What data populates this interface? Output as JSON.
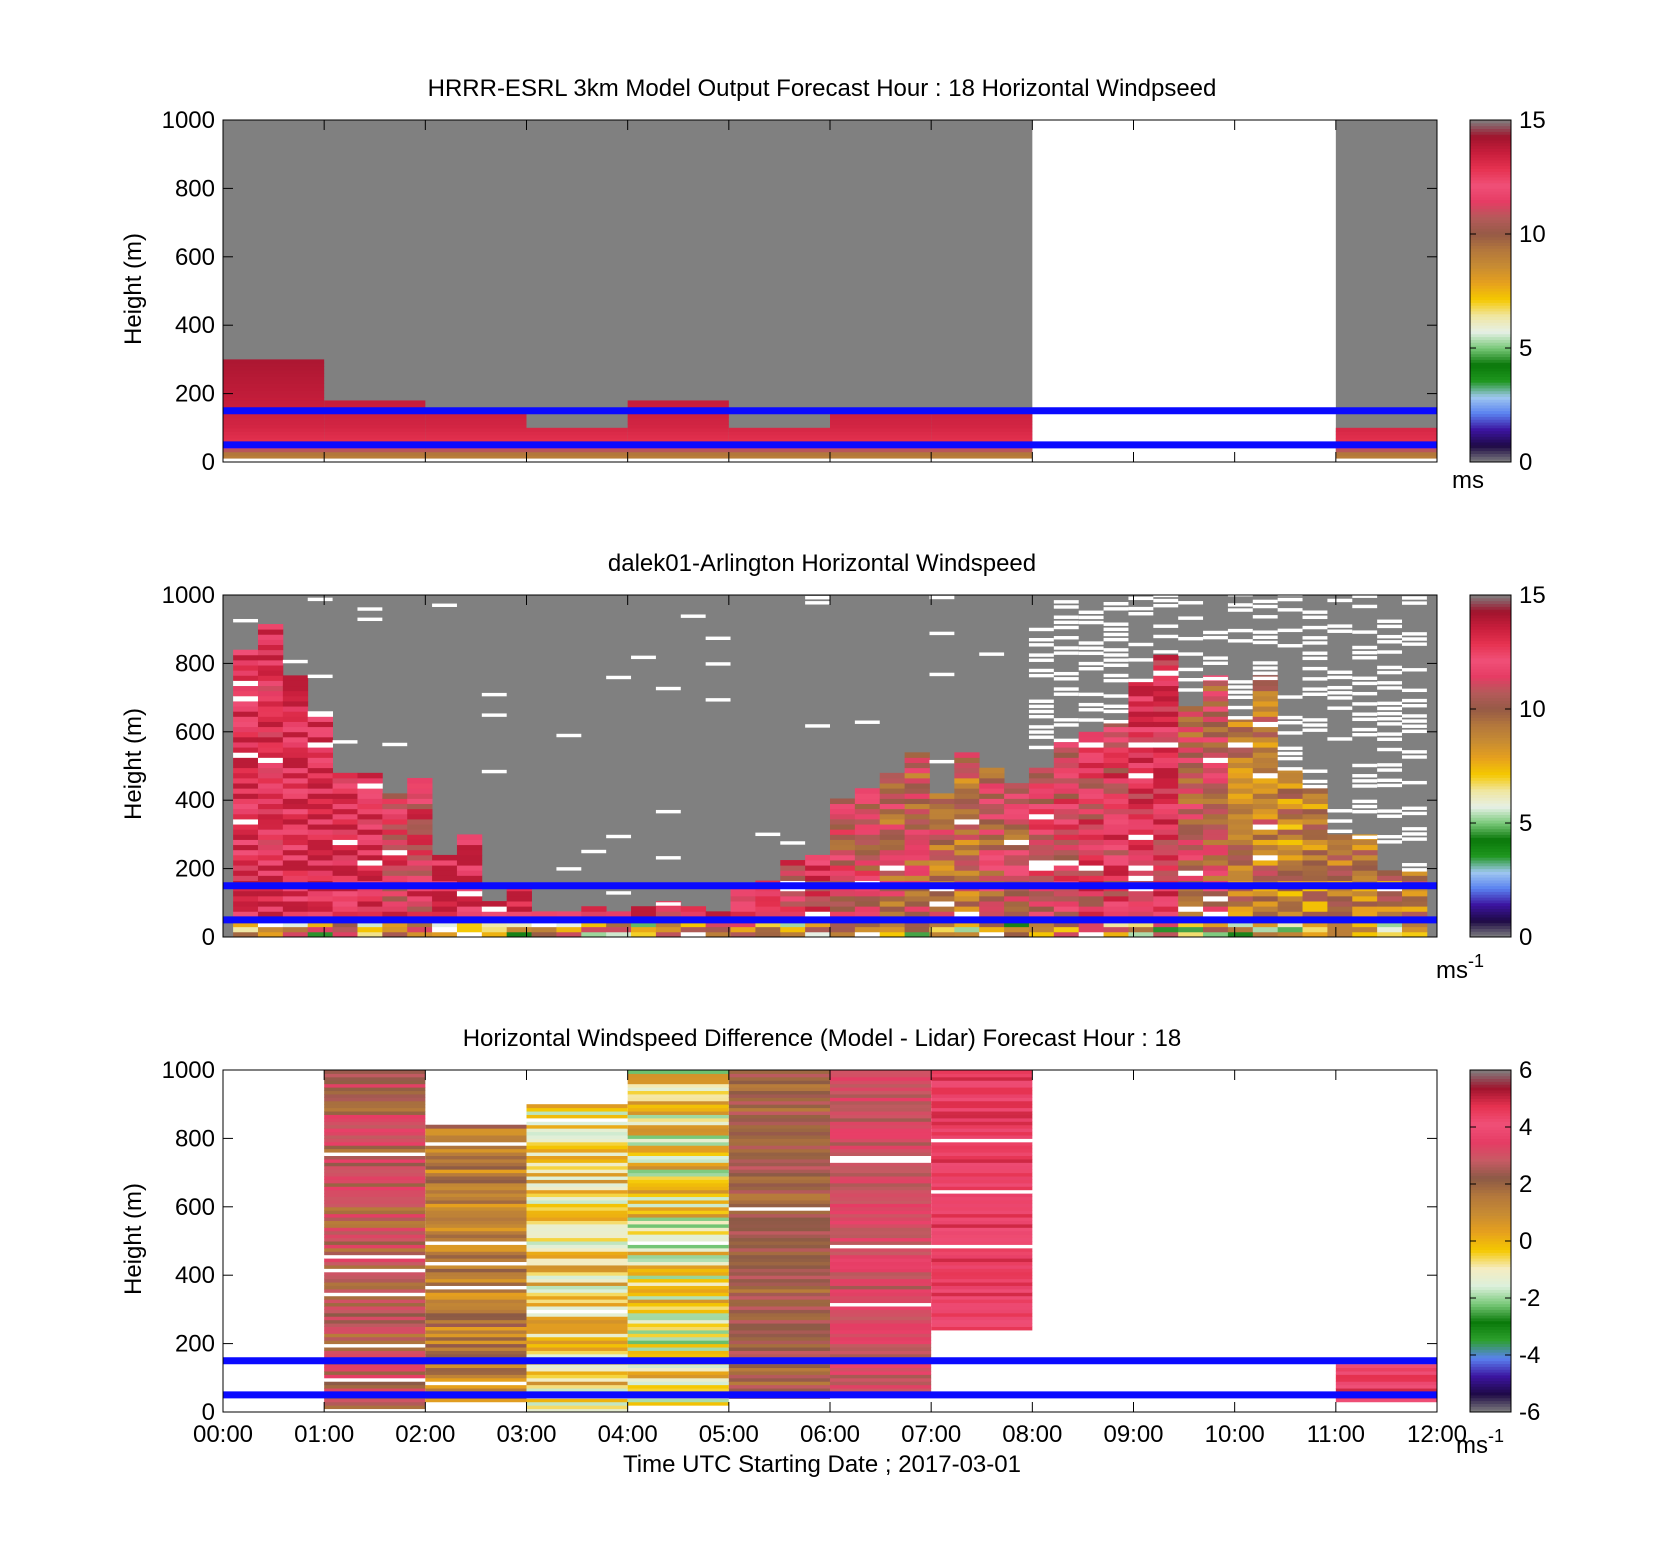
{
  "figure": {
    "background": "#ffffff",
    "band_line_color": "#0a0aff",
    "missing_color": "#808080"
  },
  "colormaps": {
    "speed": [
      "#808080",
      "#1e0a46",
      "#3c14a0",
      "#5a82f0",
      "#a0c8f0",
      "#1e961e",
      "#0a780a",
      "#78c878",
      "#e6f0e6",
      "#f0e6a0",
      "#f5c800",
      "#e6a01e",
      "#c88c32",
      "#b4783c",
      "#965a46",
      "#b45a5a",
      "#e63c64",
      "#f05078",
      "#e63250",
      "#c81e3c",
      "#a0142d",
      "#808080"
    ],
    "diff": [
      "#808080",
      "#1e0a46",
      "#3c14a0",
      "#5a82f0",
      "#2da02d",
      "#0a7a0a",
      "#78c878",
      "#dcf0dc",
      "#f5ecc0",
      "#f5c800",
      "#e6a01e",
      "#c88c32",
      "#b4783c",
      "#8c5a46",
      "#c85a64",
      "#e63c64",
      "#f05078",
      "#e63250",
      "#a0142d",
      "#808080"
    ]
  },
  "chart_data": [
    {
      "type": "heatmap",
      "id": "model",
      "title": "HRRR-ESRL 3km Model Output   Forecast Hour : 18 Horizontal Windpseed",
      "ylabel": "Height (m)",
      "xlabel": "",
      "xlim": [
        0,
        12
      ],
      "ylim": [
        0,
        1000
      ],
      "yticks": [
        0,
        200,
        400,
        600,
        800,
        1000
      ],
      "xtick_hours": [
        0,
        1,
        2,
        3,
        4,
        5,
        6,
        7,
        8,
        9,
        10,
        11,
        12
      ],
      "show_xtick_labels": false,
      "colorbar": {
        "min": 0,
        "max": 15,
        "ticks": [
          0,
          5,
          10,
          15
        ],
        "label": "ms",
        "label_sup": "",
        "colormap": "speed"
      },
      "band_lines_m": [
        50,
        150
      ],
      "background": "#808080",
      "gaps": [
        [
          8,
          11
        ]
      ],
      "columns": [
        {
          "x0": 0,
          "x1": 1,
          "top": 300
        },
        {
          "x0": 1,
          "x1": 2,
          "top": 180
        },
        {
          "x0": 2,
          "x1": 3,
          "top": 150
        },
        {
          "x0": 3,
          "x1": 4,
          "top": 100
        },
        {
          "x0": 4,
          "x1": 5,
          "top": 180
        },
        {
          "x0": 5,
          "x1": 6,
          "top": 100
        },
        {
          "x0": 6,
          "x1": 7,
          "top": 150
        },
        {
          "x0": 7,
          "x1": 8,
          "top": 150
        },
        {
          "x0": 11,
          "x1": 12,
          "top": 100
        }
      ],
      "value_profile": [
        [
          0,
          9
        ],
        [
          25,
          9.5
        ],
        [
          40,
          12
        ],
        [
          60,
          13.5
        ],
        [
          110,
          14
        ],
        [
          200,
          14.4
        ],
        [
          300,
          14.8
        ]
      ]
    },
    {
      "type": "heatmap",
      "id": "lidar",
      "title": "dalek01-Arlington  Horizontal Windspeed",
      "ylabel": "Height (m)",
      "xlabel": "",
      "xlim": [
        0,
        12
      ],
      "ylim": [
        0,
        1000
      ],
      "yticks": [
        0,
        200,
        400,
        600,
        800,
        1000
      ],
      "xtick_hours": [
        0,
        1,
        2,
        3,
        4,
        5,
        6,
        7,
        8,
        9,
        10,
        11,
        12
      ],
      "show_xtick_labels": false,
      "colorbar": {
        "min": 0,
        "max": 15,
        "ticks": [
          0,
          5,
          10,
          15
        ],
        "label": "ms",
        "label_sup": "-1",
        "colormap": "speed"
      },
      "band_lines_m": [
        50,
        150
      ],
      "background": "#808080",
      "data_x_range": [
        0.1,
        11.9
      ],
      "columns_hourly_top_m": [
        880,
        720,
        540,
        420,
        260,
        120,
        70,
        70,
        80,
        80,
        140,
        250,
        400,
        500,
        480,
        500,
        530,
        690,
        720,
        740,
        700,
        500,
        300,
        200
      ],
      "hourly_mean_speed": [
        13.5,
        13.8,
        13.5,
        12.5,
        13.8,
        13.6,
        13.2,
        12.8,
        13.2,
        13.0,
        13.4,
        12.5,
        11.5,
        10.5,
        10.0,
        11.0,
        12.0,
        12.5,
        13.0,
        11.0,
        9.5,
        9.0,
        9.2,
        9.5
      ]
    },
    {
      "type": "heatmap",
      "id": "difference",
      "title": "Horizontal Windspeed Difference (Model - Lidar) Forecast Hour : 18",
      "ylabel": "Height (m)",
      "xlabel": "Time UTC  Starting Date ; 2017-03-01",
      "xlim": [
        0,
        12
      ],
      "ylim": [
        0,
        1000
      ],
      "yticks": [
        0,
        200,
        400,
        600,
        800,
        1000
      ],
      "xtick_labels": [
        "00:00",
        "01:00",
        "02:00",
        "03:00",
        "04:00",
        "05:00",
        "06:00",
        "07:00",
        "08:00",
        "09:00",
        "10:00",
        "11:00",
        "12:00"
      ],
      "xtick_hours": [
        0,
        1,
        2,
        3,
        4,
        5,
        6,
        7,
        8,
        9,
        10,
        11,
        12
      ],
      "show_xtick_labels": true,
      "colorbar": {
        "min": -6,
        "max": 6,
        "ticks": [
          -6,
          -4,
          -2,
          0,
          2,
          4,
          6
        ],
        "label": "ms",
        "label_sup": "-1",
        "colormap": "diff"
      },
      "band_lines_m": [
        50,
        150
      ],
      "background": "#ffffff",
      "columns": [
        {
          "x0": 1,
          "x1": 2,
          "bottom": 0,
          "top": 1000,
          "mean_diff": 2.8,
          "swing": 1.2
        },
        {
          "x0": 2,
          "x1": 3,
          "bottom": 30,
          "top": 840,
          "mean_diff": 1.5,
          "swing": 1.2
        },
        {
          "x0": 3,
          "x1": 4,
          "bottom": 0,
          "top": 900,
          "mean_diff": -0.5,
          "swing": 1.5
        },
        {
          "x0": 4,
          "x1": 5,
          "bottom": 20,
          "top": 1000,
          "mean_diff": -0.8,
          "swing": 1.8
        },
        {
          "x0": 5,
          "x1": 6,
          "bottom": 30,
          "top": 1000,
          "mean_diff": 2.4,
          "swing": 0.8
        },
        {
          "x0": 6,
          "x1": 7,
          "bottom": 60,
          "top": 1000,
          "mean_diff": 3.4,
          "swing": 0.7
        },
        {
          "x0": 7,
          "x1": 8,
          "bottom": 240,
          "top": 1000,
          "mean_diff": 4.8,
          "swing": 0.8
        },
        {
          "x0": 11,
          "x1": 12,
          "bottom": 30,
          "top": 140,
          "mean_diff": 5.0,
          "swing": 0.8
        }
      ]
    }
  ]
}
